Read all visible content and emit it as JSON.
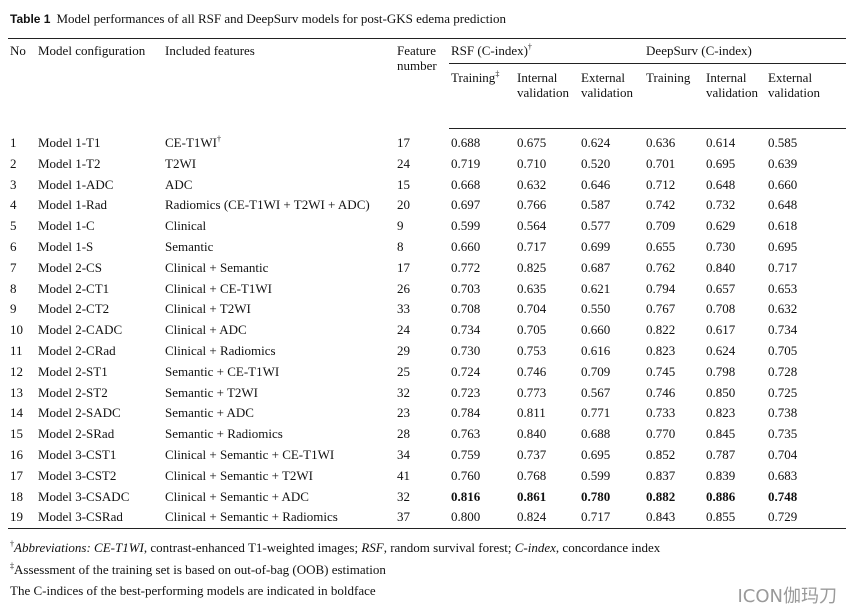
{
  "title": {
    "label": "Table 1",
    "text": "Model performances of all RSF and DeepSurv models for post-GKS edema prediction"
  },
  "table": {
    "headers": [
      {
        "text": "No"
      },
      {
        "text": "Model configuration"
      },
      {
        "text": "Included features"
      },
      {
        "text": "Feature number"
      },
      {
        "text": "RSF (C-index)",
        "sup": "†"
      },
      {
        "text": "DeepSurv (C-index)"
      }
    ],
    "subheaders": [
      {
        "text": "Training",
        "sup": "‡"
      },
      {
        "text": "Internal validation"
      },
      {
        "text": "External validation"
      },
      {
        "text": "Training"
      },
      {
        "text": "Internal validation"
      },
      {
        "text": "External validation"
      }
    ],
    "rows": [
      {
        "cells": [
          "1",
          "Model 1-T1",
          {
            "text": "CE-T1WI",
            "sup": "†"
          },
          "17",
          "0.688",
          "0.675",
          "0.624",
          "0.636",
          "0.614",
          "0.585"
        ]
      },
      {
        "cells": [
          "2",
          "Model 1-T2",
          "T2WI",
          "24",
          "0.719",
          "0.710",
          "0.520",
          "0.701",
          "0.695",
          "0.639"
        ]
      },
      {
        "cells": [
          "3",
          "Model 1-ADC",
          "ADC",
          "15",
          "0.668",
          "0.632",
          "0.646",
          "0.712",
          "0.648",
          "0.660"
        ]
      },
      {
        "cells": [
          "4",
          "Model 1-Rad",
          "Radiomics (CE-T1WI + T2WI + ADC)",
          "20",
          "0.697",
          "0.766",
          "0.587",
          "0.742",
          "0.732",
          "0.648"
        ]
      },
      {
        "cells": [
          "5",
          "Model 1-C",
          "Clinical",
          "9",
          "0.599",
          "0.564",
          "0.577",
          "0.709",
          "0.629",
          "0.618"
        ]
      },
      {
        "cells": [
          "6",
          "Model 1-S",
          "Semantic",
          "8",
          "0.660",
          "0.717",
          "0.699",
          "0.655",
          "0.730",
          "0.695"
        ]
      },
      {
        "cells": [
          "7",
          "Model 2-CS",
          "Clinical + Semantic",
          "17",
          "0.772",
          "0.825",
          "0.687",
          "0.762",
          "0.840",
          "0.717"
        ]
      },
      {
        "cells": [
          "8",
          "Model 2-CT1",
          "Clinical + CE-T1WI",
          "26",
          "0.703",
          "0.635",
          "0.621",
          "0.794",
          "0.657",
          "0.653"
        ]
      },
      {
        "cells": [
          "9",
          "Model 2-CT2",
          "Clinical + T2WI",
          "33",
          "0.708",
          "0.704",
          "0.550",
          "0.767",
          "0.708",
          "0.632"
        ]
      },
      {
        "cells": [
          "10",
          "Model 2-CADC",
          "Clinical + ADC",
          "24",
          "0.734",
          "0.705",
          "0.660",
          "0.822",
          "0.617",
          "0.734"
        ]
      },
      {
        "cells": [
          "11",
          "Model 2-CRad",
          "Clinical + Radiomics",
          "29",
          "0.730",
          "0.753",
          "0.616",
          "0.823",
          "0.624",
          "0.705"
        ]
      },
      {
        "cells": [
          "12",
          "Model 2-ST1",
          "Semantic + CE-T1WI",
          "25",
          "0.724",
          "0.746",
          "0.709",
          "0.745",
          "0.798",
          "0.728"
        ]
      },
      {
        "cells": [
          "13",
          "Model 2-ST2",
          "Semantic + T2WI",
          "32",
          "0.723",
          "0.773",
          "0.567",
          "0.746",
          "0.850",
          "0.725"
        ]
      },
      {
        "cells": [
          "14",
          "Model 2-SADC",
          "Semantic + ADC",
          "23",
          "0.784",
          "0.811",
          "0.771",
          "0.733",
          "0.823",
          "0.738"
        ]
      },
      {
        "cells": [
          "15",
          "Model 2-SRad",
          "Semantic + Radiomics",
          "28",
          "0.763",
          "0.840",
          "0.688",
          "0.770",
          "0.845",
          "0.735"
        ]
      },
      {
        "cells": [
          "16",
          "Model 3-CST1",
          "Clinical + Semantic + CE-T1WI",
          "34",
          "0.759",
          "0.737",
          "0.695",
          "0.852",
          "0.787",
          "0.704"
        ]
      },
      {
        "cells": [
          "17",
          "Model 3-CST2",
          "Clinical + Semantic + T2WI",
          "41",
          "0.760",
          "0.768",
          "0.599",
          "0.837",
          "0.839",
          "0.683"
        ]
      },
      {
        "cells": [
          "18",
          "Model 3-CSADC",
          "Clinical + Semantic + ADC",
          "32",
          "0.816",
          "0.861",
          "0.780",
          "0.882",
          "0.886",
          "0.748"
        ],
        "bold": true
      },
      {
        "cells": [
          "19",
          "Model 3-CSRad",
          "Clinical + Semantic + Radiomics",
          "37",
          "0.800",
          "0.824",
          "0.717",
          "0.843",
          "0.855",
          "0.729"
        ]
      }
    ]
  },
  "footnotes": [
    {
      "mark": "†",
      "segments": [
        {
          "text": "Abbreviations: CE-T1WI",
          "italic": true
        },
        {
          "text": ", contrast-enhanced T1-weighted images; "
        },
        {
          "text": "RSF",
          "italic": true
        },
        {
          "text": ", random survival forest; "
        },
        {
          "text": "C-index",
          "italic": true
        },
        {
          "text": ", concordance index"
        }
      ]
    },
    {
      "mark": "‡",
      "segments": [
        {
          "text": "Assessment of the training set is based on out-of-bag (OOB) estimation"
        }
      ]
    },
    {
      "segments": [
        {
          "text": "The C-indices of the best-performing models are indicated in boldface"
        }
      ]
    }
  ],
  "watermark": "ICON伽玛刀"
}
